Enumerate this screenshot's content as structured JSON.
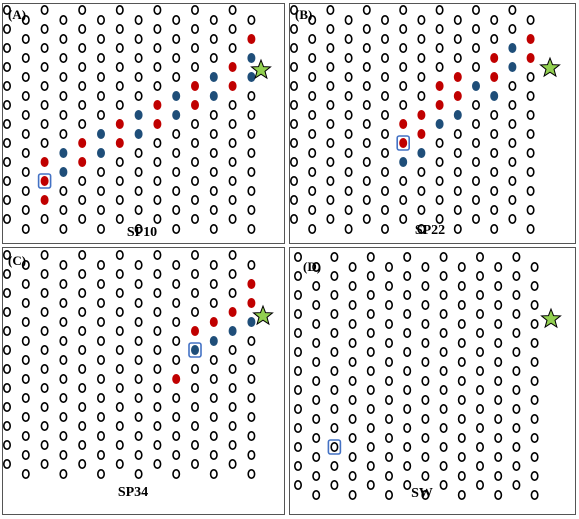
{
  "colors": {
    "ring": "#000000",
    "red": "#c00000",
    "blue": "#1f4e79",
    "star_fill": "#92d050",
    "marker": "#4472c4"
  },
  "panels": [
    {
      "id": "A",
      "label": "(A)",
      "name": "SP10",
      "red": [
        [
          2,
          8
        ],
        [
          2,
          9
        ],
        [
          2,
          10
        ],
        [
          4,
          7
        ],
        [
          4,
          8
        ],
        [
          6,
          6
        ],
        [
          6,
          7
        ],
        [
          8,
          5
        ],
        [
          8,
          6
        ],
        [
          10,
          4
        ],
        [
          10,
          5
        ],
        [
          12,
          3
        ],
        [
          12,
          4
        ],
        [
          13,
          1
        ]
      ],
      "blue": [
        [
          3,
          7
        ],
        [
          3,
          8
        ],
        [
          5,
          6
        ],
        [
          5,
          7
        ],
        [
          7,
          5
        ],
        [
          7,
          6
        ],
        [
          9,
          4
        ],
        [
          9,
          5
        ],
        [
          11,
          3
        ],
        [
          11,
          4
        ],
        [
          13,
          2
        ],
        [
          13,
          3
        ]
      ]
    },
    {
      "id": "B",
      "label": "(B)",
      "name": "SP22",
      "red": [
        [
          6,
          6
        ],
        [
          6,
          7
        ],
        [
          7,
          5
        ],
        [
          7,
          6
        ],
        [
          8,
          4
        ],
        [
          8,
          5
        ],
        [
          9,
          3
        ],
        [
          9,
          4
        ],
        [
          11,
          2
        ],
        [
          11,
          3
        ],
        [
          13,
          1
        ],
        [
          13,
          2
        ]
      ],
      "blue": [
        [
          6,
          8
        ],
        [
          7,
          7
        ],
        [
          8,
          6
        ],
        [
          9,
          5
        ],
        [
          10,
          4
        ],
        [
          11,
          4
        ],
        [
          12,
          2
        ],
        [
          12,
          3
        ]
      ]
    },
    {
      "id": "C",
      "label": "(C)",
      "name": "SP34",
      "red": [
        [
          9,
          6
        ],
        [
          10,
          4
        ],
        [
          11,
          3
        ],
        [
          12,
          3
        ],
        [
          13,
          1
        ],
        [
          13,
          2
        ]
      ],
      "blue": [
        [
          10,
          5
        ],
        [
          11,
          4
        ],
        [
          12,
          4
        ],
        [
          13,
          3
        ]
      ]
    },
    {
      "id": "D",
      "label": "(D)",
      "name": "SW",
      "red": [],
      "blue": []
    }
  ]
}
